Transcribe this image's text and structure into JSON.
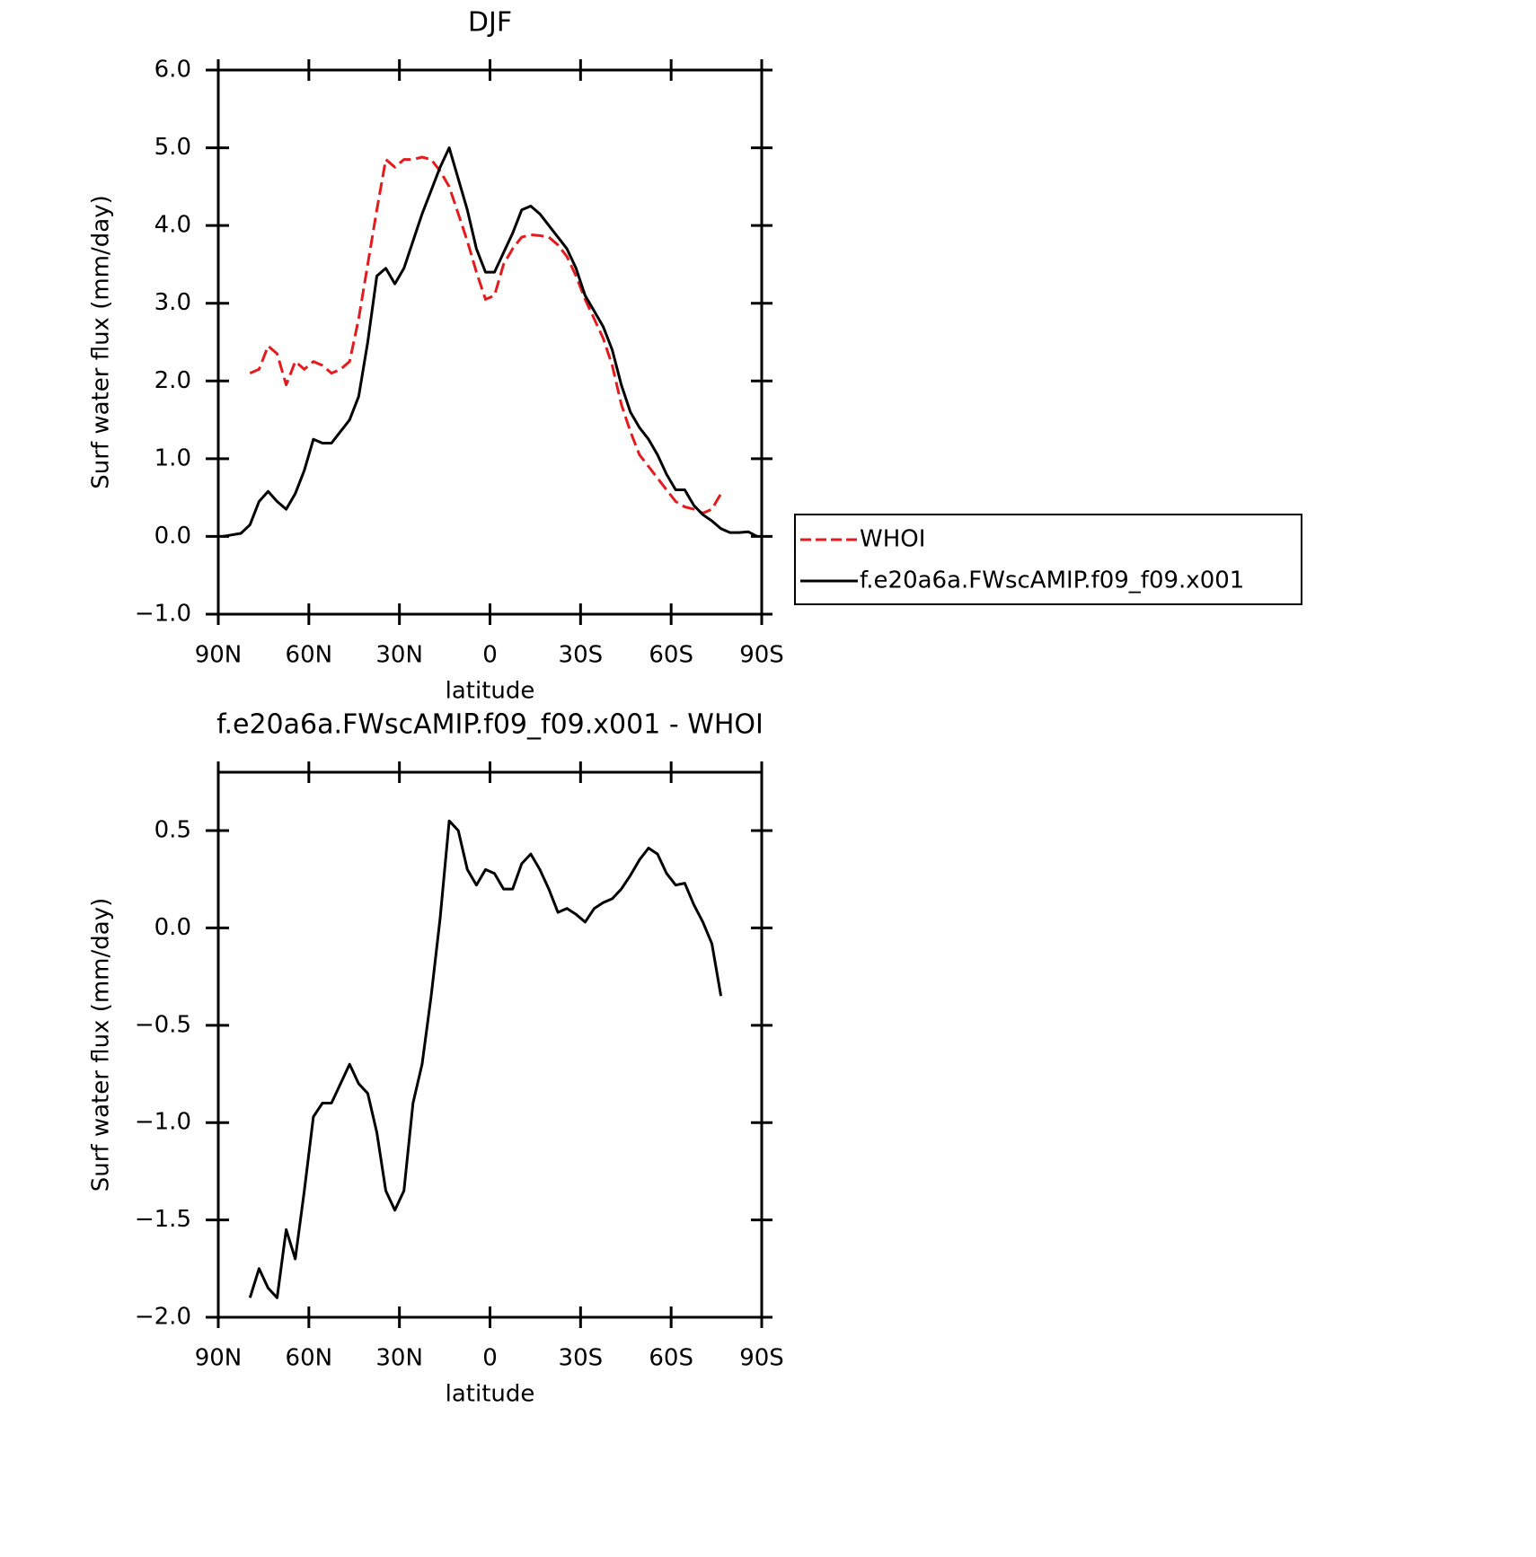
{
  "chart_data": [
    {
      "type": "line",
      "title": "DJF",
      "xlabel": "latitude",
      "ylabel": "Surf water flux (mm/day)",
      "xlim": [
        90,
        -90
      ],
      "xticks": [
        {
          "value": 90,
          "label": "90N"
        },
        {
          "value": 60,
          "label": "60N"
        },
        {
          "value": 30,
          "label": "30N"
        },
        0,
        {
          "value": -30,
          "label": "30S"
        },
        {
          "value": -60,
          "label": "60S"
        },
        {
          "value": -90,
          "label": "90S"
        }
      ],
      "ylim": [
        -1,
        6
      ],
      "yticks": [
        {
          "value": -1,
          "label": "−1.0"
        },
        {
          "value": 0,
          "label": "0.0"
        },
        {
          "value": 1,
          "label": "1.0"
        },
        {
          "value": 2,
          "label": "2.0"
        },
        {
          "value": 3,
          "label": "3.0"
        },
        {
          "value": 4,
          "label": "4.0"
        },
        {
          "value": 5,
          "label": "5.0"
        },
        {
          "value": 6,
          "label": "6.0"
        }
      ],
      "legend": "right",
      "x": [
        88.5,
        85.5,
        82.5,
        79.5,
        76.5,
        73.5,
        70.5,
        67.5,
        64.5,
        61.5,
        58.5,
        55.5,
        52.5,
        49.5,
        46.5,
        43.5,
        40.5,
        37.5,
        34.5,
        31.5,
        28.5,
        25.5,
        22.5,
        19.5,
        16.5,
        13.5,
        10.5,
        7.5,
        4.5,
        1.5,
        -1.5,
        -4.5,
        -7.5,
        -10.5,
        -13.5,
        -16.5,
        -19.5,
        -22.5,
        -25.5,
        -28.5,
        -31.5,
        -34.5,
        -37.5,
        -40.5,
        -43.5,
        -46.5,
        -49.5,
        -52.5,
        -55.5,
        -58.5,
        -61.5,
        -64.5,
        -67.5,
        -70.5,
        -73.5,
        -76.5,
        -79.5,
        -82.5,
        -85.5,
        -88.5
      ],
      "series": [
        {
          "name": "WHOI",
          "color": "#e41a1c",
          "dashed": true,
          "values": [
            null,
            null,
            null,
            2.1,
            2.15,
            2.45,
            2.35,
            1.95,
            2.25,
            2.15,
            2.25,
            2.2,
            2.1,
            2.15,
            2.25,
            2.8,
            3.5,
            4.2,
            4.85,
            4.75,
            4.85,
            4.85,
            4.88,
            4.85,
            4.7,
            4.5,
            4.15,
            3.8,
            3.4,
            3.05,
            3.1,
            3.5,
            3.7,
            3.85,
            3.88,
            3.87,
            3.85,
            3.75,
            3.6,
            3.35,
            3.05,
            2.8,
            2.55,
            2.2,
            1.7,
            1.35,
            1.05,
            0.9,
            0.75,
            0.6,
            0.45,
            0.38,
            0.35,
            0.3,
            0.35,
            0.55,
            null,
            null,
            null,
            null
          ]
        },
        {
          "name": "f.e20a6a.FWscAMIP.f09_f09.x001",
          "color": "#000000",
          "dashed": false,
          "values": [
            0.0,
            0.02,
            0.04,
            0.15,
            0.45,
            0.58,
            0.45,
            0.35,
            0.55,
            0.85,
            1.25,
            1.2,
            1.2,
            1.35,
            1.5,
            1.8,
            2.5,
            3.35,
            3.45,
            3.25,
            3.45,
            3.8,
            4.15,
            4.45,
            4.75,
            5.0,
            4.6,
            4.2,
            3.7,
            3.4,
            3.4,
            3.65,
            3.9,
            4.2,
            4.25,
            4.15,
            4.0,
            3.85,
            3.7,
            3.45,
            3.1,
            2.9,
            2.7,
            2.4,
            1.95,
            1.6,
            1.4,
            1.25,
            1.05,
            0.8,
            0.6,
            0.6,
            0.4,
            0.28,
            0.2,
            0.1,
            0.05,
            0.05,
            0.06,
            0.0
          ]
        }
      ]
    },
    {
      "type": "line",
      "title": "f.e20a6a.FWscAMIP.f09_f09.x001 - WHOI",
      "xlabel": "latitude",
      "ylabel": "Surf water flux (mm/day)",
      "xlim": [
        90,
        -90
      ],
      "xticks": [
        {
          "value": 90,
          "label": "90N"
        },
        {
          "value": 60,
          "label": "60N"
        },
        {
          "value": 30,
          "label": "30N"
        },
        0,
        {
          "value": -30,
          "label": "30S"
        },
        {
          "value": -60,
          "label": "60S"
        },
        {
          "value": -90,
          "label": "90S"
        }
      ],
      "ylim": [
        -2,
        0.8
      ],
      "yticks": [
        {
          "value": -2,
          "label": "−2.0"
        },
        {
          "value": -1.5,
          "label": "−1.5"
        },
        {
          "value": -1,
          "label": "−1.0"
        },
        {
          "value": -0.5,
          "label": "−0.5"
        },
        {
          "value": 0,
          "label": "0.0"
        },
        0.5
      ],
      "x": [
        88.5,
        85.5,
        82.5,
        79.5,
        76.5,
        73.5,
        70.5,
        67.5,
        64.5,
        61.5,
        58.5,
        55.5,
        52.5,
        49.5,
        46.5,
        43.5,
        40.5,
        37.5,
        34.5,
        31.5,
        28.5,
        25.5,
        22.5,
        19.5,
        16.5,
        13.5,
        10.5,
        7.5,
        4.5,
        1.5,
        -1.5,
        -4.5,
        -7.5,
        -10.5,
        -13.5,
        -16.5,
        -19.5,
        -22.5,
        -25.5,
        -28.5,
        -31.5,
        -34.5,
        -37.5,
        -40.5,
        -43.5,
        -46.5,
        -49.5,
        -52.5,
        -55.5,
        -58.5,
        -61.5,
        -64.5,
        -67.5,
        -70.5,
        -73.5,
        -76.5,
        -79.5,
        -82.5,
        -85.5,
        -88.5
      ],
      "series": [
        {
          "color": "#000000",
          "dashed": false,
          "values": [
            null,
            null,
            null,
            -1.9,
            -1.75,
            -1.85,
            -1.9,
            -1.55,
            -1.7,
            -1.35,
            -0.97,
            -0.9,
            -0.9,
            -0.8,
            -0.7,
            -0.8,
            -0.85,
            -1.05,
            -1.35,
            -1.45,
            -1.35,
            -0.9,
            -0.7,
            -0.35,
            0.05,
            0.55,
            0.5,
            0.3,
            0.22,
            0.3,
            0.28,
            0.2,
            0.2,
            0.33,
            0.38,
            0.3,
            0.2,
            0.08,
            0.1,
            0.07,
            0.03,
            0.1,
            0.13,
            0.15,
            0.2,
            0.27,
            0.35,
            0.41,
            0.38,
            0.28,
            0.22,
            0.23,
            0.12,
            0.03,
            -0.08,
            -0.35,
            null,
            null,
            null,
            null
          ]
        }
      ]
    }
  ]
}
